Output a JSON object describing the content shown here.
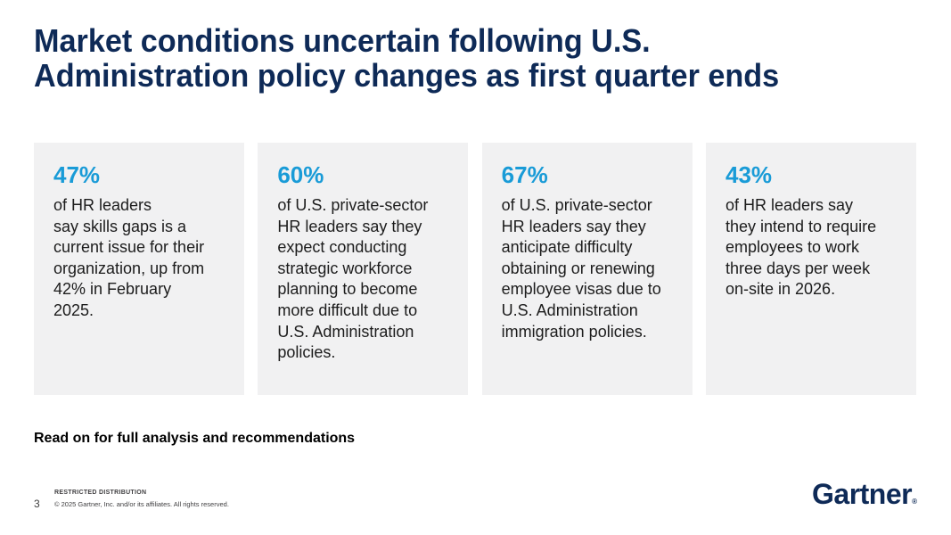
{
  "slide": {
    "title": "Market conditions uncertain following U.S.\nAdministration policy changes as first quarter ends",
    "cards": [
      {
        "stat": "47%",
        "text": "of HR leaders\nsay skills gaps is a\ncurrent issue for their\norganization, up from\n42% in February\n2025."
      },
      {
        "stat": "60%",
        "text": "of U.S. private-sector\nHR leaders say they\nexpect conducting\nstrategic workforce\nplanning to become\nmore difficult due to\nU.S. Administration\npolicies."
      },
      {
        "stat": "67%",
        "text": "of U.S. private-sector\nHR leaders say they\nanticipate difficulty\nobtaining or renewing\nemployee visas due to\nU.S. Administration\nimmigration policies."
      },
      {
        "stat": "43%",
        "text": "of HR leaders say\nthey intend to require\nemployees to work\nthree days per week\non-site in 2026."
      }
    ],
    "callout": "Read on for full analysis and recommendations",
    "footer": {
      "page_number": "3",
      "restricted": "RESTRICTED DISTRIBUTION",
      "copyright": "© 2025 Gartner, Inc. and/or its affiliates. All rights reserved.",
      "logo_text": "Gartner",
      "logo_registered": "®"
    },
    "colors": {
      "navy": "#0e2a57",
      "stat_blue": "#199bd7",
      "card_bg": "#f1f1f2",
      "body_text": "#1c1c1c"
    }
  }
}
